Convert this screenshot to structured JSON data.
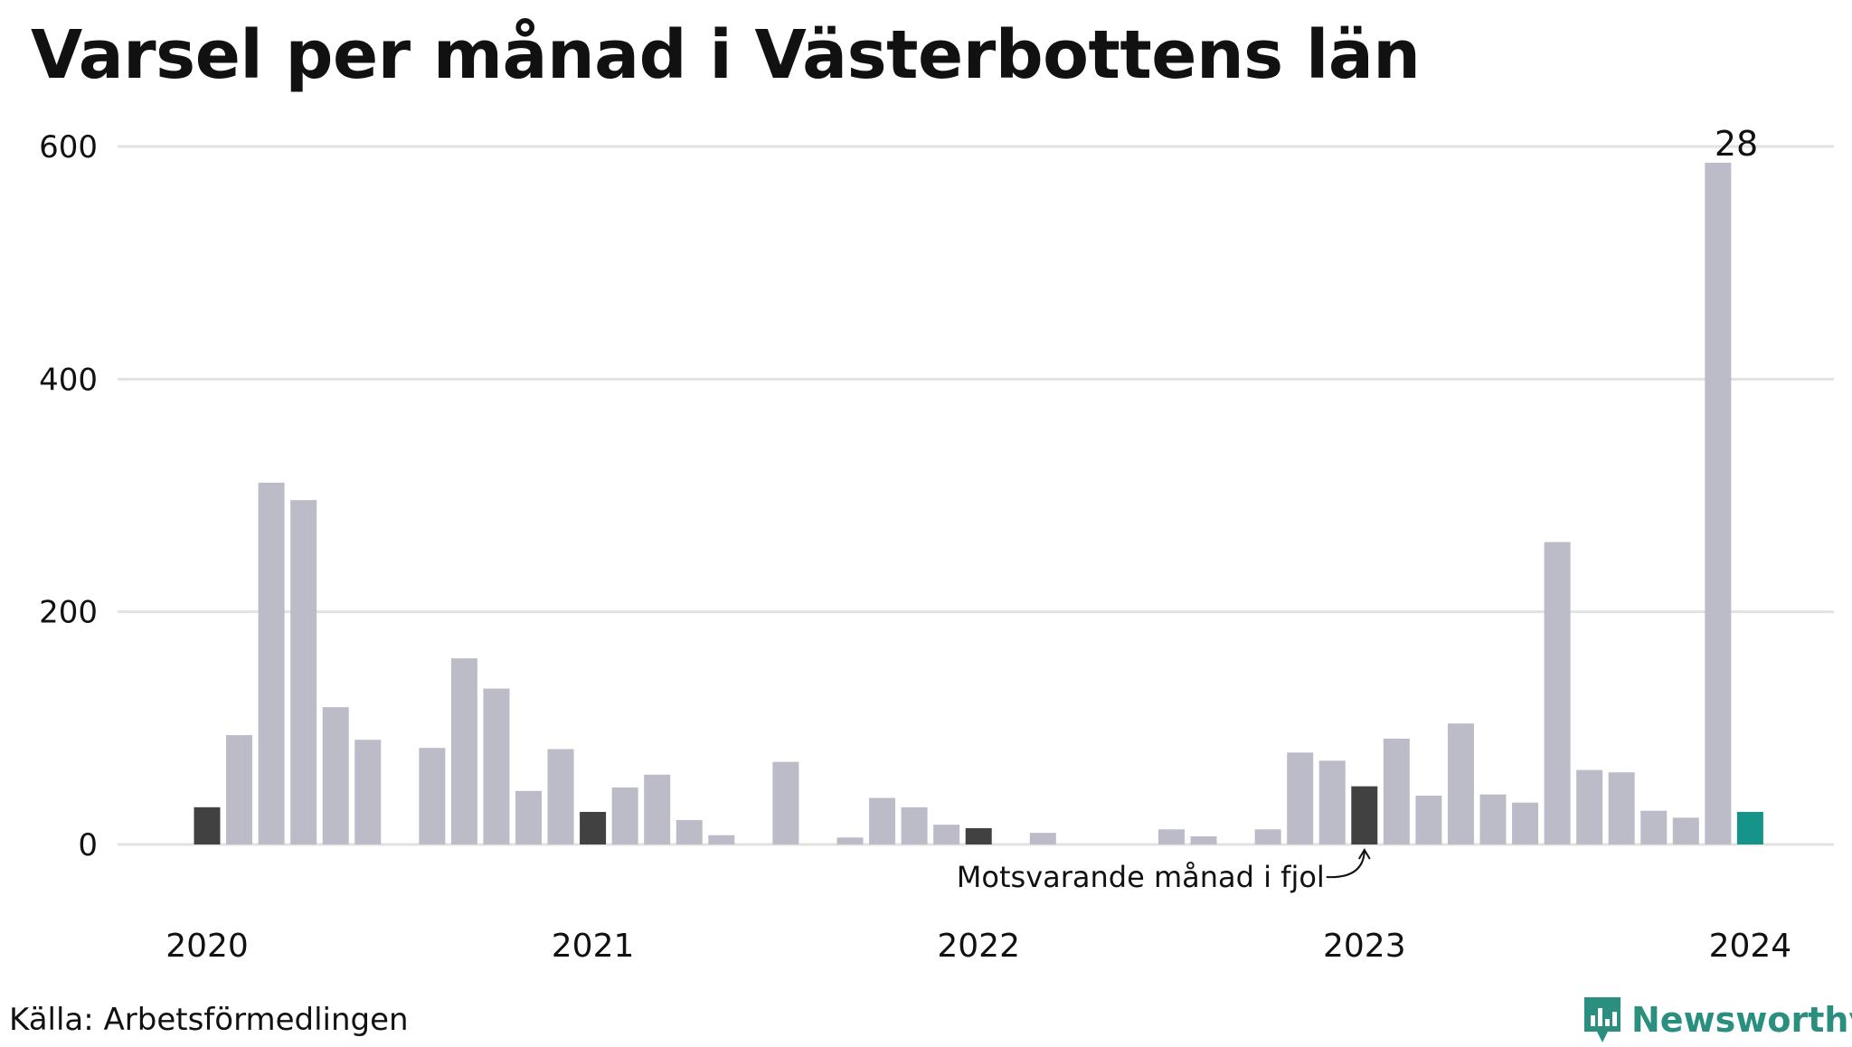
{
  "title": "Varsel per månad i Västerbottens län",
  "source": "Källa: Arbetsförmedlingen",
  "brand": {
    "name": "Newsworthy",
    "icon": "newsworthy-logo-icon",
    "color": "#2a8f7f"
  },
  "colors": {
    "bar_default": "#bcbbc8",
    "bar_same_month": "#414141",
    "bar_current": "#17948a",
    "grid": "#e2e2e2"
  },
  "chart_data": {
    "type": "bar",
    "title": "Varsel per månad i Västerbottens län",
    "xlabel": "",
    "ylabel": "",
    "ylim": [
      0,
      600
    ],
    "y_ticks": [
      0,
      200,
      400,
      600
    ],
    "x_tick_labels": [
      {
        "label": "2020",
        "month_index": 0
      },
      {
        "label": "2021",
        "month_index": 12
      },
      {
        "label": "2022",
        "month_index": 24
      },
      {
        "label": "2023",
        "month_index": 36
      },
      {
        "label": "2024",
        "month_index": 48
      }
    ],
    "months": [
      "2020-01",
      "2020-02",
      "2020-03",
      "2020-04",
      "2020-05",
      "2020-06",
      "2020-07",
      "2020-08",
      "2020-09",
      "2020-10",
      "2020-11",
      "2020-12",
      "2021-01",
      "2021-02",
      "2021-03",
      "2021-04",
      "2021-05",
      "2021-06",
      "2021-07",
      "2021-08",
      "2021-09",
      "2021-10",
      "2021-11",
      "2021-12",
      "2022-01",
      "2022-02",
      "2022-03",
      "2022-04",
      "2022-05",
      "2022-06",
      "2022-07",
      "2022-08",
      "2022-09",
      "2022-10",
      "2022-11",
      "2022-12",
      "2023-01",
      "2023-02",
      "2023-03",
      "2023-04",
      "2023-05",
      "2023-06",
      "2023-07",
      "2023-08",
      "2023-09",
      "2023-10",
      "2023-11",
      "2023-12",
      "2024-01"
    ],
    "values": [
      32,
      94,
      311,
      296,
      118,
      90,
      0,
      83,
      160,
      134,
      46,
      82,
      28,
      49,
      60,
      21,
      8,
      0,
      71,
      0,
      6,
      40,
      32,
      17,
      14,
      0,
      10,
      0,
      0,
      0,
      13,
      7,
      0,
      13,
      79,
      72,
      50,
      91,
      42,
      104,
      43,
      36,
      260,
      64,
      62,
      29,
      23,
      586,
      28
    ],
    "highlight_same_month_indices": [
      0,
      12,
      24,
      36
    ],
    "current_index": 48,
    "current_value_label": "28",
    "annotation": {
      "text": "Motsvarande månad i fjol",
      "target_index": 36
    }
  }
}
